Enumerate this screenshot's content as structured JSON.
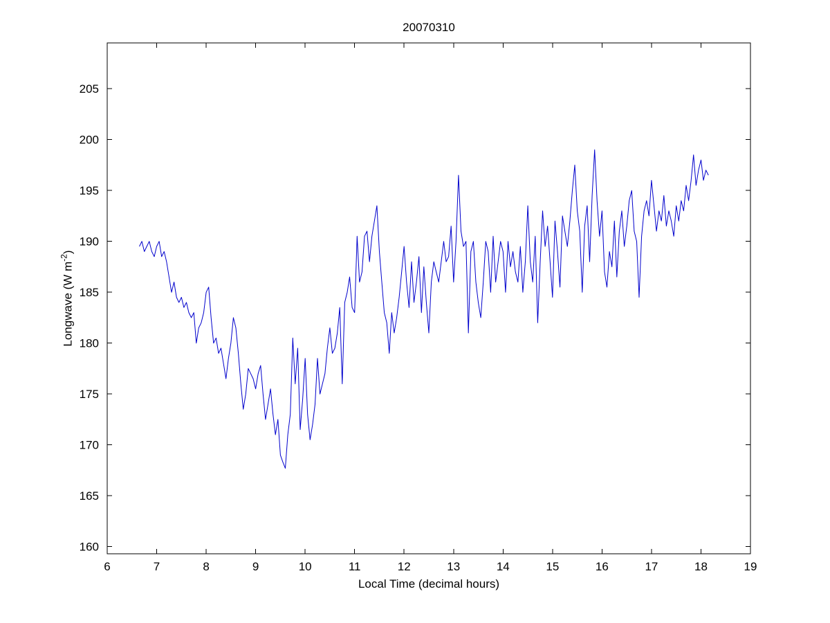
{
  "chart_data": {
    "type": "line",
    "title": "20070310",
    "xlabel": "Local Time (decimal hours)",
    "ylabel": "Longwave (W m^-2)",
    "ylabel_parts": [
      "Longwave (W m",
      "-2",
      ")"
    ],
    "line_color": "#0000CC",
    "axis_color": "#000000",
    "grid": false,
    "legend": "none",
    "xlim": [
      6,
      19
    ],
    "ylim": [
      159.3,
      209.5
    ],
    "xticks": [
      6,
      7,
      8,
      9,
      10,
      11,
      12,
      13,
      14,
      15,
      16,
      17,
      18,
      19
    ],
    "yticks": [
      160,
      165,
      170,
      175,
      180,
      185,
      190,
      195,
      200,
      205
    ],
    "x_start": 6.65,
    "x_step": 0.05,
    "values": [
      189.5,
      190,
      189,
      189.5,
      190,
      189,
      188.5,
      189.5,
      190,
      188.5,
      189,
      188,
      186.5,
      185,
      186,
      184.5,
      184,
      184.5,
      183.5,
      184,
      183,
      182.5,
      183,
      180,
      181.5,
      182,
      183,
      185,
      185.5,
      182.5,
      180,
      180.5,
      179,
      179.5,
      178,
      176.5,
      178.5,
      180,
      182.5,
      181.5,
      179,
      176,
      173.5,
      175,
      177.5,
      177,
      176.5,
      175.5,
      177,
      177.8,
      175,
      172.5,
      174,
      175.5,
      173,
      171,
      172.5,
      169,
      168.3,
      167.7,
      171,
      173,
      180.5,
      176,
      179.5,
      171.5,
      174.5,
      178.5,
      173,
      170.5,
      172,
      174,
      178.5,
      175,
      176,
      177,
      179.5,
      181.5,
      179,
      179.5,
      181,
      183.5,
      176,
      184,
      185,
      186.5,
      183.5,
      183,
      190.5,
      186,
      187,
      190.5,
      191,
      188,
      190.5,
      192,
      193.5,
      189,
      186,
      183,
      182,
      179,
      183,
      181,
      182.5,
      184.5,
      187,
      189.5,
      186,
      183.5,
      188,
      184,
      186,
      188.5,
      183,
      187.5,
      184,
      181,
      186,
      188,
      187,
      186,
      188,
      190,
      188,
      188.5,
      191.5,
      186,
      190,
      196.5,
      191,
      189.5,
      190,
      181,
      189,
      190,
      186,
      184,
      182.5,
      186,
      190,
      189,
      185,
      190.5,
      186,
      188,
      190,
      189,
      185,
      190,
      187.5,
      189,
      187,
      186,
      189.5,
      185,
      188,
      193.5,
      188,
      186,
      190.5,
      182,
      188,
      193,
      189.5,
      191.5,
      188,
      184.5,
      192,
      189,
      185.5,
      192.5,
      191,
      189.5,
      192,
      195,
      197.5,
      193,
      191,
      185,
      191.5,
      193.5,
      188,
      194.5,
      199,
      194,
      190.5,
      193,
      187,
      185.5,
      189,
      187.5,
      192,
      186.5,
      191,
      193,
      189.5,
      191.5,
      194,
      195,
      191,
      190,
      184.5,
      190.5,
      193,
      194,
      192.5,
      196,
      193.5,
      191,
      193,
      192,
      194.5,
      191.5,
      193,
      192,
      190.5,
      193.5,
      192,
      194,
      193,
      195.5,
      194,
      196,
      198.5,
      195.5,
      197,
      198,
      196,
      197,
      196.5
    ]
  }
}
